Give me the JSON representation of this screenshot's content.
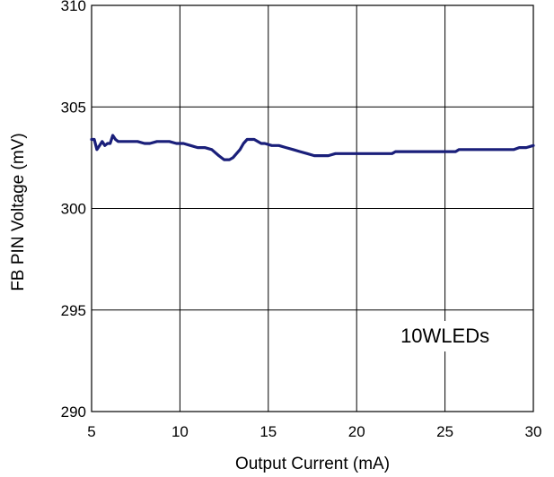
{
  "chart_data": {
    "type": "line",
    "title": "",
    "xlabel": "Output Current (mA)",
    "ylabel": "FB PIN Voltage (mV)",
    "xlim": [
      5,
      30
    ],
    "ylim": [
      290,
      310
    ],
    "xticks": [
      5,
      10,
      15,
      20,
      25,
      30
    ],
    "yticks": [
      290,
      295,
      300,
      305,
      310
    ],
    "grid": true,
    "legend": "none",
    "annotation": "10WLEDs",
    "series_color": "#1a1f7a",
    "series": [
      {
        "x": [
          5.0,
          5.15,
          5.3,
          5.45,
          5.6,
          5.75,
          5.9,
          6.05,
          6.2,
          6.35,
          6.5,
          6.8,
          7.2,
          7.6,
          8.0,
          8.3,
          8.7,
          9.0,
          9.4,
          9.8,
          10.2,
          10.6,
          11.0,
          11.4,
          11.8,
          12.2,
          12.5,
          12.8,
          13.0,
          13.2,
          13.4,
          13.6,
          13.8,
          14.0,
          14.2,
          14.4,
          14.6,
          14.8,
          15.2,
          15.6,
          16.0,
          16.4,
          16.8,
          17.2,
          17.6,
          18.0,
          18.4,
          18.8,
          19.4,
          20.0,
          21.0,
          22.0,
          22.2,
          23.0,
          24.0,
          25.0,
          25.6,
          25.8,
          26.5,
          27.5,
          28.5,
          28.9,
          29.2,
          29.6,
          30.0
        ],
        "y": [
          303.4,
          303.4,
          302.9,
          303.1,
          303.3,
          303.1,
          303.2,
          303.2,
          303.6,
          303.4,
          303.3,
          303.3,
          303.3,
          303.3,
          303.2,
          303.2,
          303.3,
          303.3,
          303.3,
          303.2,
          303.2,
          303.1,
          303.0,
          303.0,
          302.9,
          302.6,
          302.4,
          302.4,
          302.5,
          302.7,
          302.9,
          303.2,
          303.4,
          303.4,
          303.4,
          303.3,
          303.2,
          303.2,
          303.1,
          303.1,
          303.0,
          302.9,
          302.8,
          302.7,
          302.6,
          302.6,
          302.6,
          302.7,
          302.7,
          302.7,
          302.7,
          302.7,
          302.8,
          302.8,
          302.8,
          302.8,
          302.8,
          302.9,
          302.9,
          302.9,
          302.9,
          302.9,
          303.0,
          303.0,
          303.1
        ]
      }
    ]
  }
}
